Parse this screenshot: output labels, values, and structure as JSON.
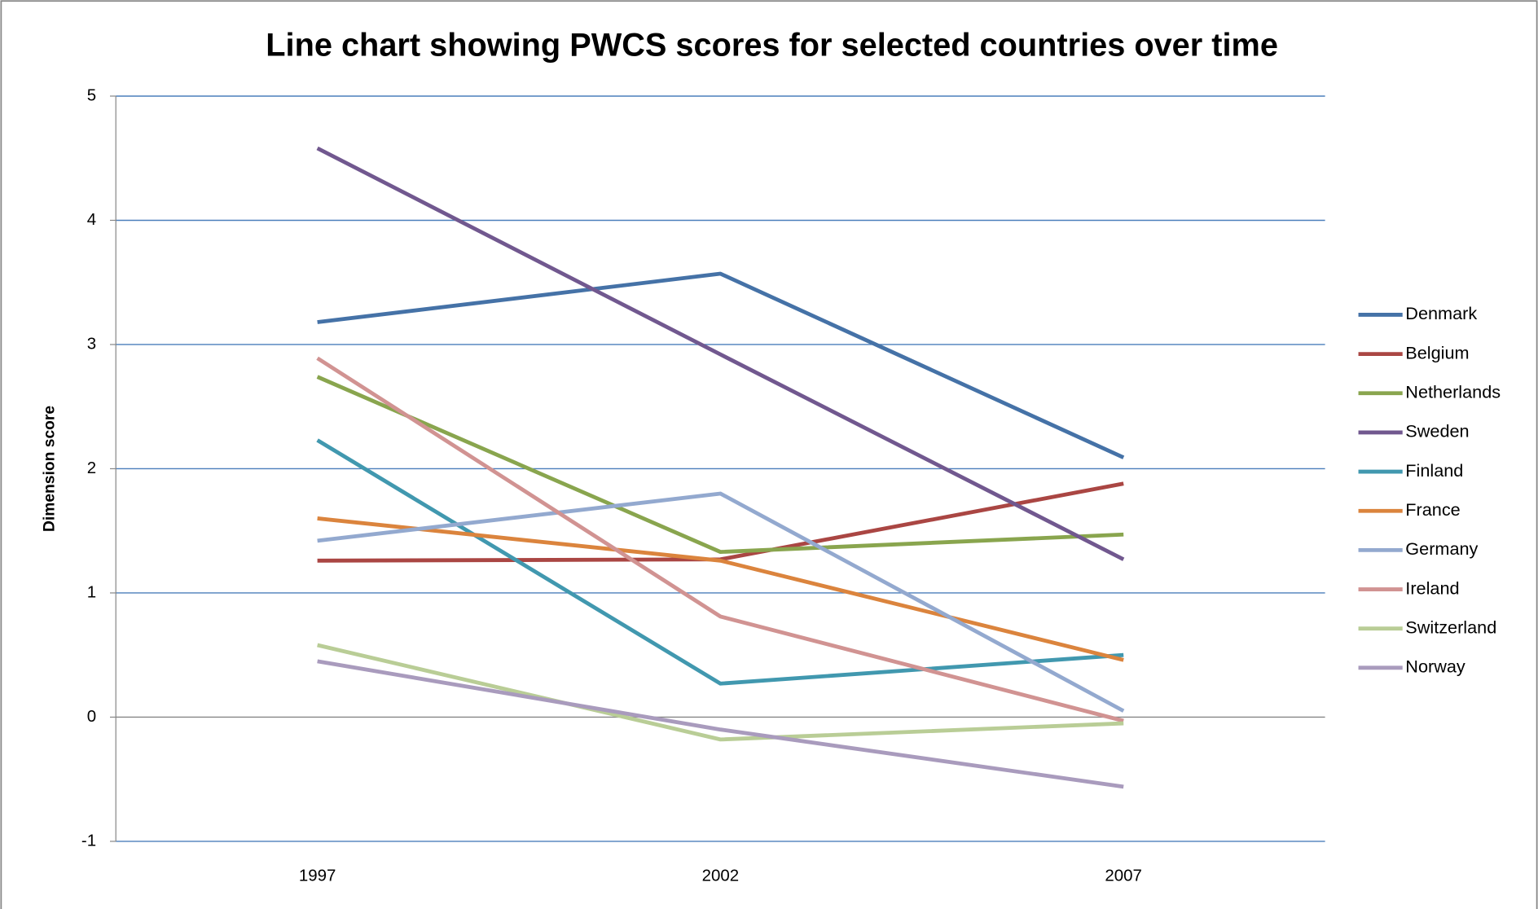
{
  "chart_data": {
    "type": "line",
    "title": "Line chart showing PWCS scores for selected countries over time",
    "ylabel": "Dimension score",
    "categories": [
      "1997",
      "2002",
      "2007"
    ],
    "ylim": [
      -1,
      5
    ],
    "yticks": [
      -1,
      0,
      1,
      2,
      3,
      4,
      5
    ],
    "grid": true,
    "legend": "right",
    "series": [
      {
        "name": "Denmark",
        "color": "#4572a7",
        "values": [
          3.18,
          3.57,
          2.09
        ]
      },
      {
        "name": "Belgium",
        "color": "#aa4643",
        "values": [
          1.26,
          1.27,
          1.88
        ]
      },
      {
        "name": "Netherlands",
        "color": "#89a54e",
        "values": [
          2.74,
          1.33,
          1.47
        ]
      },
      {
        "name": "Sweden",
        "color": "#71588f",
        "values": [
          4.58,
          2.92,
          1.27
        ]
      },
      {
        "name": "Finland",
        "color": "#4198af",
        "values": [
          2.23,
          0.27,
          0.5
        ]
      },
      {
        "name": "France",
        "color": "#db843d",
        "values": [
          1.6,
          1.26,
          0.46
        ]
      },
      {
        "name": "Germany",
        "color": "#93a9cf",
        "values": [
          1.42,
          1.8,
          0.05
        ]
      },
      {
        "name": "Ireland",
        "color": "#d19392",
        "values": [
          2.89,
          0.81,
          -0.03
        ]
      },
      {
        "name": "Switzerland",
        "color": "#b9cd96",
        "values": [
          0.58,
          -0.18,
          -0.05
        ]
      },
      {
        "name": "Norway",
        "color": "#a99bbd",
        "values": [
          0.45,
          -0.1,
          -0.56
        ]
      }
    ]
  }
}
